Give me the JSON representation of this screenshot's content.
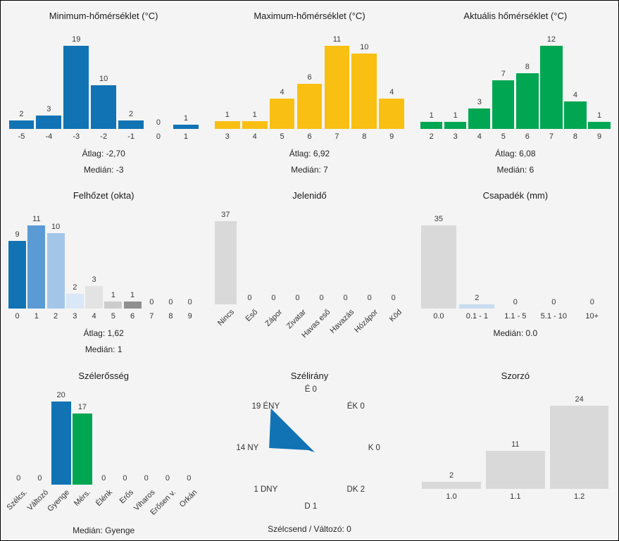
{
  "page": {
    "background_color": "#f4f4f4",
    "accent_blue": "#1173b4",
    "accent_yellow": "#f9c013",
    "accent_green": "#00a651",
    "neutral_bar": "#d9d9d9"
  },
  "chart_data": [
    {
      "type": "bar",
      "title": "Minimum-hőmérséklet (°C)",
      "categories": [
        "-5",
        "-4",
        "-3",
        "-2",
        "-1",
        "0",
        "1"
      ],
      "values": [
        2,
        3,
        19,
        10,
        2,
        0,
        1
      ],
      "bar_color": "#1173b4",
      "stats": [
        "Átlag: -2,70",
        "Medián: -3"
      ]
    },
    {
      "type": "bar",
      "title": "Maximum-hőmérséklet (°C)",
      "categories": [
        "3",
        "4",
        "5",
        "6",
        "7",
        "8",
        "9"
      ],
      "values": [
        1,
        1,
        4,
        6,
        11,
        10,
        4
      ],
      "bar_color": "#f9c013",
      "stats": [
        "Átlag: 6,92",
        "Medián: 7"
      ]
    },
    {
      "type": "bar",
      "title": "Aktuális hőmérséklet (°C)",
      "categories": [
        "2",
        "3",
        "4",
        "5",
        "6",
        "7",
        "8",
        "9"
      ],
      "values": [
        1,
        1,
        3,
        7,
        8,
        12,
        4,
        1
      ],
      "bar_color": "#00a651",
      "stats": [
        "Átlag: 6,08",
        "Medián: 6"
      ]
    },
    {
      "type": "bar",
      "title": "Felhőzet (okta)",
      "categories": [
        "0",
        "1",
        "2",
        "3",
        "4",
        "5",
        "6",
        "7",
        "8",
        "9"
      ],
      "values": [
        9,
        11,
        10,
        2,
        3,
        1,
        1,
        0,
        0,
        0
      ],
      "bar_colors": [
        "#1173b4",
        "#5b9bd5",
        "#a3c6e8",
        "#d9e7f6",
        "#e3e3e3",
        "#cccccc",
        "#8f8f8f",
        "#787878",
        "#616161",
        "#4a4a4a"
      ],
      "stats": [
        "Átlag: 1,62",
        "Medián: 1"
      ]
    },
    {
      "type": "bar",
      "title": "Jelenidő",
      "categories": [
        "Nincs",
        "Eső",
        "Zápor",
        "Zivatar",
        "Havas eső",
        "Havazás",
        "Hózápor",
        "Köd"
      ],
      "values": [
        37,
        0,
        0,
        0,
        0,
        0,
        0,
        0
      ],
      "bar_color": "#d9d9d9",
      "rotate_labels": true,
      "stats": []
    },
    {
      "type": "bar",
      "title": "Csapadék (mm)",
      "categories": [
        "0.0",
        "0.1 - 1",
        "1.1 - 5",
        "5.1 - 10",
        "10+"
      ],
      "values": [
        35,
        2,
        0,
        0,
        0
      ],
      "bar_colors": [
        "#d9d9d9",
        "#c9dcef",
        "#d9d9d9",
        "#d9d9d9",
        "#d9d9d9"
      ],
      "stats": [
        "Medián: 0.0"
      ]
    },
    {
      "type": "bar",
      "title": "Szélerősség",
      "categories": [
        "Szélcs.",
        "Változó",
        "Gyenge",
        "Mérs.",
        "Élénk",
        "Erős",
        "Viharos",
        "Erősen v.",
        "Orkán"
      ],
      "values": [
        0,
        0,
        20,
        17,
        0,
        0,
        0,
        0,
        0
      ],
      "bar_colors": [
        "#d9d9d9",
        "#d9d9d9",
        "#1173b4",
        "#00a651",
        "#d9d9d9",
        "#d9d9d9",
        "#d9d9d9",
        "#d9d9d9",
        "#d9d9d9"
      ],
      "rotate_labels": true,
      "stats": [
        "Medián: Gyenge"
      ]
    },
    {
      "type": "wind-rose",
      "title": "Szélirány",
      "directions": [
        {
          "label": "É",
          "value": 0
        },
        {
          "label": "ÉK",
          "value": 0
        },
        {
          "label": "K",
          "value": 0
        },
        {
          "label": "DK",
          "value": 2
        },
        {
          "label": "D",
          "value": 1
        },
        {
          "label": "DNY",
          "value": 1
        },
        {
          "label": "NY",
          "value": 14
        },
        {
          "label": "ÉNY",
          "value": 19
        }
      ],
      "fill_color": "#1173b4",
      "footer": "Szélcsend / Változó: 0"
    },
    {
      "type": "bar",
      "title": "Szorzó",
      "categories": [
        "1.0",
        "1.1",
        "1.2"
      ],
      "values": [
        2,
        11,
        24
      ],
      "bar_color": "#d9d9d9",
      "stats": []
    }
  ]
}
